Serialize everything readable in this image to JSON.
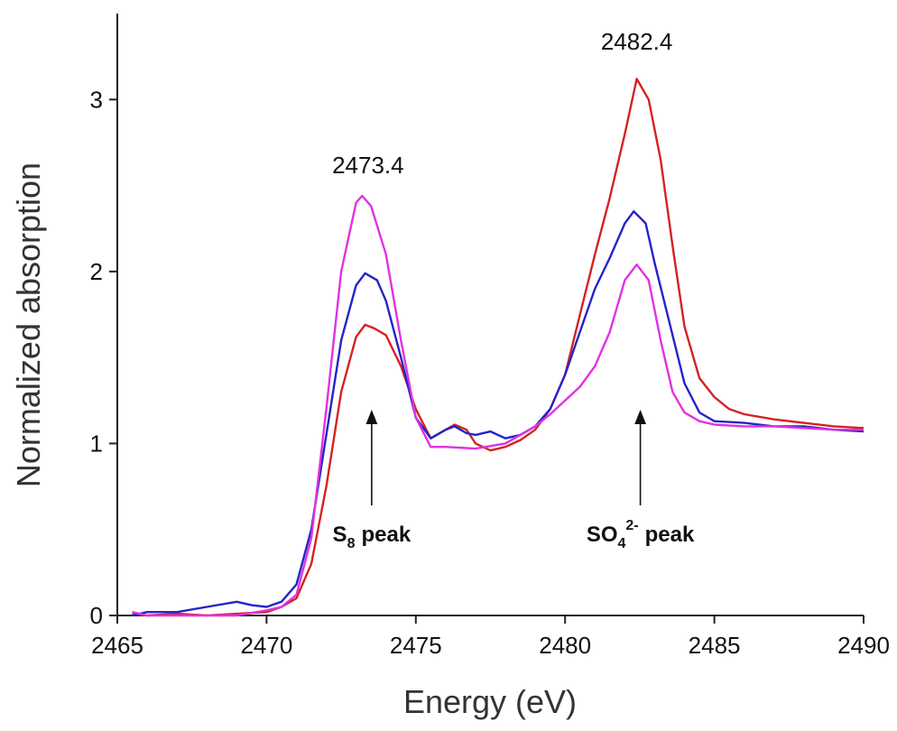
{
  "chart_data": {
    "type": "line",
    "xlabel": "Energy (eV)",
    "ylabel": "Normalized absorption",
    "xlim": [
      2465,
      2490
    ],
    "xticks": [
      2465,
      2470,
      2475,
      2480,
      2485,
      2490
    ],
    "ylim": [
      0,
      3.5
    ],
    "yticks": [
      0,
      1,
      2,
      3
    ],
    "grid": false,
    "peak_labels": [
      2473.4,
      2482.4
    ],
    "peak_names": [
      {
        "base": "S",
        "sub": "8",
        "text": "peak"
      },
      {
        "base": "SO",
        "sub": "4",
        "sup": "2-",
        "text": "peak"
      }
    ],
    "series": [
      {
        "color": "#d42222",
        "x": [
          2465.5,
          2466,
          2467,
          2468,
          2469,
          2470,
          2470.5,
          2471,
          2471.5,
          2472,
          2472.5,
          2473,
          2473.3,
          2473.6,
          2474,
          2474.5,
          2475,
          2475.5,
          2476,
          2476.3,
          2476.7,
          2477,
          2477.5,
          2478,
          2478.5,
          2479,
          2479.5,
          2480,
          2480.5,
          2481,
          2481.5,
          2482,
          2482.4,
          2482.8,
          2483.2,
          2483.6,
          2484,
          2484.5,
          2485,
          2485.5,
          2486,
          2487,
          2488,
          2489,
          2490
        ],
        "values": [
          0.01,
          0.0,
          0.01,
          0.0,
          0.01,
          0.02,
          0.05,
          0.1,
          0.3,
          0.75,
          1.3,
          1.62,
          1.69,
          1.67,
          1.63,
          1.45,
          1.2,
          1.03,
          1.08,
          1.11,
          1.08,
          1.0,
          0.96,
          0.98,
          1.02,
          1.08,
          1.2,
          1.4,
          1.75,
          2.1,
          2.43,
          2.8,
          3.12,
          3.0,
          2.65,
          2.15,
          1.68,
          1.38,
          1.27,
          1.2,
          1.17,
          1.14,
          1.12,
          1.1,
          1.09
        ]
      },
      {
        "color": "#2424c8",
        "x": [
          2465.5,
          2466,
          2467,
          2468,
          2469,
          2469.5,
          2470,
          2470.5,
          2471,
          2471.5,
          2472,
          2472.5,
          2473,
          2473.3,
          2473.7,
          2474,
          2474.5,
          2475,
          2475.5,
          2476,
          2476.3,
          2476.7,
          2477,
          2477.5,
          2478,
          2478.5,
          2479,
          2479.5,
          2480,
          2480.5,
          2481,
          2481.5,
          2482,
          2482.3,
          2482.7,
          2483,
          2483.5,
          2484,
          2484.5,
          2485,
          2486,
          2487,
          2488,
          2489,
          2490
        ],
        "values": [
          0.0,
          0.02,
          0.02,
          0.05,
          0.08,
          0.06,
          0.05,
          0.08,
          0.18,
          0.5,
          1.05,
          1.6,
          1.92,
          1.99,
          1.95,
          1.83,
          1.5,
          1.15,
          1.03,
          1.08,
          1.1,
          1.06,
          1.05,
          1.07,
          1.03,
          1.05,
          1.1,
          1.2,
          1.4,
          1.65,
          1.9,
          2.08,
          2.28,
          2.35,
          2.28,
          2.05,
          1.7,
          1.35,
          1.18,
          1.13,
          1.12,
          1.1,
          1.1,
          1.08,
          1.07
        ]
      },
      {
        "color": "#e032e0",
        "x": [
          2465.5,
          2466,
          2467,
          2468,
          2469,
          2470,
          2470.5,
          2471,
          2471.5,
          2472,
          2472.5,
          2473,
          2473.2,
          2473.5,
          2474,
          2474.5,
          2475,
          2475.5,
          2476,
          2477,
          2478,
          2478.5,
          2479,
          2479.5,
          2480,
          2480.5,
          2481,
          2481.5,
          2482,
          2482.4,
          2482.8,
          2483.2,
          2483.6,
          2484,
          2484.5,
          2485,
          2486,
          2487,
          2488,
          2489,
          2490
        ],
        "values": [
          0.02,
          0.0,
          0.0,
          0.0,
          0.0,
          0.03,
          0.05,
          0.12,
          0.45,
          1.2,
          2.0,
          2.4,
          2.44,
          2.38,
          2.1,
          1.6,
          1.15,
          0.98,
          0.98,
          0.97,
          1.0,
          1.05,
          1.1,
          1.17,
          1.25,
          1.33,
          1.45,
          1.65,
          1.95,
          2.04,
          1.95,
          1.6,
          1.3,
          1.18,
          1.13,
          1.11,
          1.1,
          1.1,
          1.09,
          1.08,
          1.08
        ]
      }
    ]
  }
}
